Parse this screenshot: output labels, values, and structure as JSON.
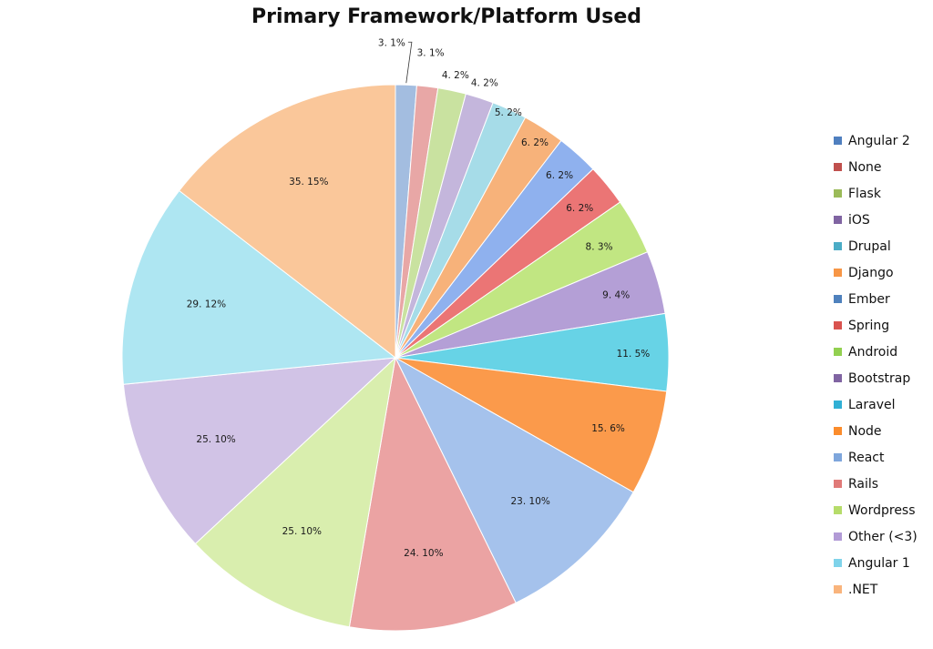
{
  "chart_data": {
    "type": "pie",
    "title": "Primary Framework/Platform Used",
    "legend_position": "right",
    "slices": [
      {
        "name": "Angular 2",
        "value": 3,
        "percent": 1,
        "label": "3. 1%",
        "color": "#a3bde0"
      },
      {
        "name": "None",
        "value": 3,
        "percent": 1,
        "label": "3. 1%",
        "color": "#e8a7a6"
      },
      {
        "name": "Flask",
        "value": 4,
        "percent": 2,
        "label": "4. 2%",
        "color": "#c9e2a0"
      },
      {
        "name": "iOS",
        "value": 4,
        "percent": 2,
        "label": "4. 2%",
        "color": "#c4b6dc"
      },
      {
        "name": "Drupal",
        "value": 5,
        "percent": 2,
        "label": "5. 2%",
        "color": "#a6dce8"
      },
      {
        "name": "Django",
        "value": 6,
        "percent": 2,
        "label": "6. 2%",
        "color": "#f7b27a"
      },
      {
        "name": "Ember",
        "value": 6,
        "percent": 2,
        "label": "6. 2%",
        "color": "#8fb1ee"
      },
      {
        "name": "Spring",
        "value": 6,
        "percent": 2,
        "label": "6. 2%",
        "color": "#eb7575"
      },
      {
        "name": "Android",
        "value": 8,
        "percent": 3,
        "label": "8. 3%",
        "color": "#c1e682"
      },
      {
        "name": "Bootstrap",
        "value": 9,
        "percent": 4,
        "label": "9. 4%",
        "color": "#b49fd6"
      },
      {
        "name": "Laravel",
        "value": 11,
        "percent": 5,
        "label": "11. 5%",
        "color": "#67d3e6"
      },
      {
        "name": "Node",
        "value": 15,
        "percent": 6,
        "label": "15. 6%",
        "color": "#fb9a4b"
      },
      {
        "name": "React",
        "value": 23,
        "percent": 10,
        "label": "23. 10%",
        "color": "#a5c2ec"
      },
      {
        "name": "Rails",
        "value": 24,
        "percent": 10,
        "label": "24. 10%",
        "color": "#eba3a3"
      },
      {
        "name": "Wordpress",
        "value": 25,
        "percent": 10,
        "label": "25. 10%",
        "color": "#d9eeae"
      },
      {
        "name": "Other (<3)",
        "value": 25,
        "percent": 10,
        "label": "25. 10%",
        "color": "#d1c3e6"
      },
      {
        "name": "Angular 1",
        "value": 29,
        "percent": 12,
        "label": "29. 12%",
        "color": "#aee6f2"
      },
      {
        "name": ".NET",
        "value": 35,
        "percent": 15,
        "label": "35. 15%",
        "color": "#fac79a"
      }
    ],
    "legend_swatch_colors": [
      "#4f7fbf",
      "#c0504d",
      "#9bbb59",
      "#8064a2",
      "#4bacc6",
      "#f79646",
      "#4f81bd",
      "#d9534f",
      "#92d050",
      "#8064a2",
      "#31b0d5",
      "#fb8c2c",
      "#7ea6dc",
      "#e07a78",
      "#b6dc6a",
      "#b29bd6",
      "#7fd3ea",
      "#f9b47c"
    ]
  }
}
